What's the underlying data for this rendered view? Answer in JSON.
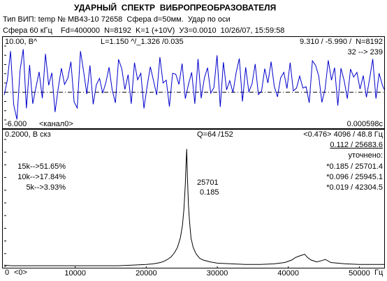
{
  "header": {
    "title": "УДАРНЫЙ  СПЕКТР  ВИБРОПРЕОБРАЗОВАТЕЛЯ",
    "line1": "Тип ВИП: temp № МВ43-10 72658  Сфера d=50мм.  Удар по оси",
    "line2": "Сфера 60 кГц    Fd=400000  N=8192  K=1 (+10V)  У3=0.0010  10/26/07, 15:59:58"
  },
  "top_panel": {
    "ymax": "10.00, В^",
    "stats": "L=1.150 ^/_1.326 /0.035",
    "peaks": "9.310 / -5.990 /  N=8192",
    "range": "32 --> 239",
    "ymin": "-6.000",
    "channel": "<канал0>",
    "duration": "0.000598с",
    "colors": {
      "signal": "#0000cc",
      "zero": "#000000"
    },
    "chart_data": {
      "type": "line",
      "title": "",
      "xlabel": "",
      "ylabel": "В",
      "xlim": [
        0,
        0.000598
      ],
      "ylim": [
        -6.0,
        10.0
      ],
      "zero_line": 0,
      "series": [
        {
          "x": [
            0,
            5e-06,
            1e-05,
            1.5e-05,
            2e-05,
            2.5e-05,
            3e-05,
            3.5e-05,
            4e-05,
            4.5e-05,
            5e-05,
            5.5e-05,
            6e-05,
            6.5e-05,
            7e-05,
            7.5e-05,
            8e-05,
            8.5e-05,
            9e-05,
            9.5e-05,
            0.0001,
            0.000105,
            0.00011,
            0.000115,
            0.00012,
            0.000125,
            0.00013,
            0.000135,
            0.00014,
            0.000145,
            0.00015,
            0.000155,
            0.00016,
            0.000165,
            0.00017,
            0.000175,
            0.00018,
            0.000185,
            0.00019,
            0.000195,
            0.0002,
            0.000205,
            0.00021,
            0.000215,
            0.00022,
            0.000225,
            0.00023,
            0.000235,
            0.00024,
            0.000245,
            0.00025,
            0.000255,
            0.00026,
            0.000265,
            0.00027,
            0.000275,
            0.00028,
            0.000285,
            0.00029,
            0.000295,
            0.0003,
            0.000305,
            0.00031,
            0.000315,
            0.00032,
            0.000325,
            0.00033,
            0.000335,
            0.00034,
            0.000345,
            0.00035,
            0.000355,
            0.00036,
            0.000365,
            0.00037,
            0.000375,
            0.00038,
            0.000385,
            0.00039,
            0.000395,
            0.0004,
            0.000405,
            0.00041,
            0.000415,
            0.00042,
            0.000425,
            0.00043,
            0.000435,
            0.00044,
            0.000445,
            0.00045,
            0.000455,
            0.00046,
            0.000465,
            0.00047,
            0.000475,
            0.00048,
            0.000485,
            0.00049,
            0.000495,
            0.0005,
            0.000505,
            0.00051,
            0.000515,
            0.00052,
            0.000525,
            0.00053,
            0.000535,
            0.00054,
            0.000545,
            0.00055,
            0.000555,
            0.00056,
            0.000565,
            0.00057,
            0.000575,
            0.00058,
            0.000585,
            0.00059,
            0.000595,
            0.000598
          ],
          "y": [
            -0.6,
            2.6,
            8.9,
            -2.7,
            -5.9,
            4.7,
            9.3,
            -3.5,
            5.9,
            -2.5,
            1.1,
            4.4,
            -1.3,
            8.3,
            1.5,
            4.2,
            -4.3,
            0.8,
            5.2,
            1.7,
            3.0,
            6.6,
            -2.1,
            -3.4,
            8.9,
            4.5,
            -0.4,
            5.8,
            -2.6,
            1.6,
            3.0,
            -0.2,
            2.1,
            5.4,
            0.5,
            -2.3,
            7.1,
            5.1,
            0.6,
            3.8,
            -2.5,
            6.4,
            2.7,
            4.1,
            -3.5,
            1.4,
            5.5,
            2.5,
            -0.6,
            7.6,
            2.0,
            2.6,
            -3.1,
            4.1,
            3.9,
            1.7,
            6.2,
            -1.4,
            1.7,
            4.3,
            -2.5,
            7.2,
            -1.3,
            3.1,
            5.3,
            -0.2,
            1.0,
            8.0,
            -3.2,
            6.5,
            0.5,
            2.5,
            -0.1,
            4.2,
            7.3,
            -2.0,
            5.4,
            0.1,
            1.8,
            6.1,
            -0.5,
            0.2,
            5.1,
            2.0,
            6.6,
            1.3,
            -1.0,
            3.1,
            4.3,
            0.8,
            6.4,
            0.3,
            0.9,
            3.5,
            0.9,
            1.2,
            -2.3,
            6.8,
            5.8,
            3.5,
            -2.2,
            0.7,
            6.9,
            2.6,
            5.3,
            -2.9,
            5.2,
            2.5,
            -1.4,
            5.0,
            3.3,
            4.3,
            0.7,
            3.6,
            -1.1,
            2.9,
            7.2,
            -1.4,
            4.1,
            1.6,
            0.6
          ]
        }
      ]
    }
  },
  "bottom_panel": {
    "ymax": "0.2000, В скз",
    "q": "Q=64 /152",
    "res": "<0.476> 4096 / 48.8 Гц",
    "res2": "0.112 / 25683.6",
    "refined_label": "уточнено:",
    "ratios": [
      "15k-->51.65%",
      "10k-->17.84%",
      "5k-->3.93%"
    ],
    "refined": [
      "*0.185 / 25701.4",
      "*0.096 / 25945.1",
      "*0.019 / 42304.5"
    ],
    "peak_freq": "25701",
    "peak_amp": "0.185",
    "origin": "0",
    "origin_label": "<0>",
    "colors": {
      "spectrum": "#000000"
    },
    "chart_data": {
      "type": "line",
      "title": "",
      "xlabel": "Гц",
      "ylabel": "В скз",
      "xlim": [
        0,
        53500
      ],
      "ylim": [
        0,
        0.2
      ],
      "xticks": [
        10000,
        20000,
        30000,
        40000,
        50000
      ],
      "xtick_labels": [
        "10000",
        "20000",
        "30000",
        "40000",
        "50000"
      ],
      "series": [
        {
          "x": [
            0,
            1000,
            2000,
            5000,
            8000,
            10000,
            13000,
            16000,
            18000,
            20000,
            21000,
            22000,
            22500,
            23000,
            23500,
            24000,
            24400,
            24800,
            25100,
            25300,
            25500,
            25600,
            25701,
            25800,
            25945,
            26100,
            26300,
            26600,
            27000,
            27500,
            28000,
            29000,
            30000,
            32000,
            34000,
            36000,
            38000,
            39500,
            40500,
            41000,
            41500,
            42000,
            42304,
            42700,
            43200,
            44000,
            44700,
            45200,
            46000,
            48000,
            50000,
            53500
          ],
          "y": [
            0.002,
            0.001,
            0.001,
            0.001,
            0.001,
            0.001,
            0.001,
            0.001,
            0.002,
            0.003,
            0.004,
            0.006,
            0.008,
            0.011,
            0.015,
            0.022,
            0.03,
            0.045,
            0.065,
            0.09,
            0.13,
            0.16,
            0.185,
            0.14,
            0.096,
            0.07,
            0.045,
            0.03,
            0.02,
            0.013,
            0.01,
            0.007,
            0.005,
            0.004,
            0.003,
            0.003,
            0.004,
            0.006,
            0.01,
            0.014,
            0.016,
            0.018,
            0.019,
            0.014,
            0.01,
            0.007,
            0.009,
            0.011,
            0.006,
            0.004,
            0.003,
            0.003
          ]
        }
      ]
    }
  }
}
